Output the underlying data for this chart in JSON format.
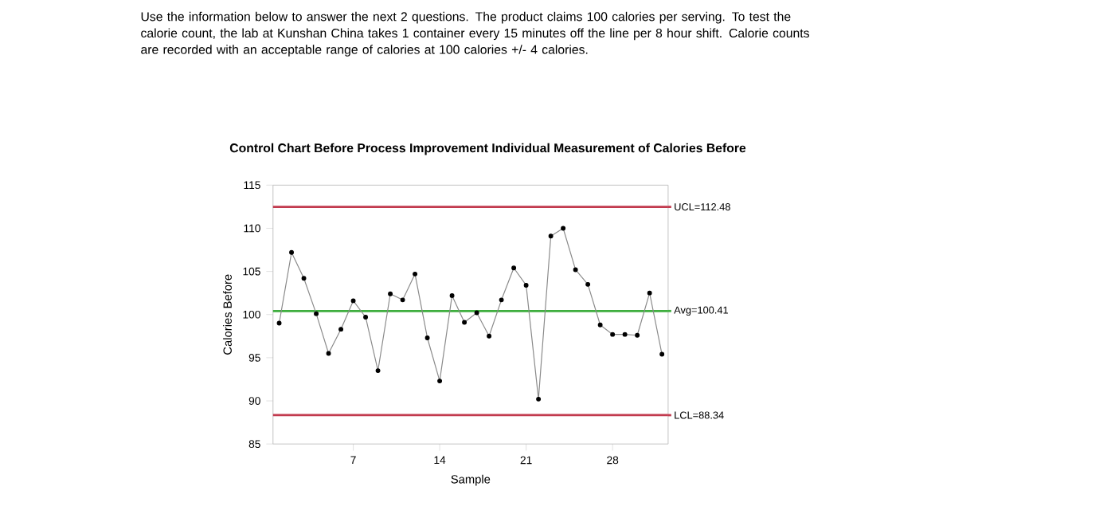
{
  "chart_data": {
    "type": "line",
    "title": "Control Chart Before Process Improvement Individual Measurement of Calories Before",
    "annotations": [
      "Use the information below to answer the next 2 questions. The product claims 100 calories per serving. To test the calorie count, the lab at Kunshan China takes 1 container every 15 minutes off the line per 8 hour shift. Calorie counts are recorded with an acceptable range of calories at 100 calories +/- 4 calories."
    ],
    "xlabel": "Sample",
    "ylabel": "Calories Before",
    "x": [
      1,
      2,
      3,
      4,
      5,
      6,
      7,
      8,
      9,
      10,
      11,
      12,
      13,
      14,
      15,
      16,
      17,
      18,
      19,
      20,
      21,
      22,
      23,
      24,
      25,
      26,
      27,
      28,
      29,
      30,
      31,
      32
    ],
    "series": [
      {
        "color": "#8a8a8a",
        "values": [
          99.0,
          107.2,
          104.2,
          100.1,
          95.5,
          98.3,
          101.6,
          99.7,
          93.5,
          102.4,
          101.7,
          104.7,
          97.3,
          92.3,
          102.2,
          99.1,
          100.2,
          97.5,
          101.7,
          105.4,
          103.4,
          90.2,
          109.1,
          110.0,
          105.2,
          103.5,
          98.8,
          97.7,
          97.7,
          97.6,
          102.5,
          95.4
        ]
      }
    ],
    "marker": "circle",
    "line_style": "solid",
    "grid": false,
    "xlim": [
      0.5,
      32.5
    ],
    "ylim": [
      85,
      115
    ],
    "xticks": [
      7,
      14,
      21,
      28
    ],
    "yticks": [
      85,
      90,
      95,
      100,
      105,
      110,
      115
    ],
    "ref_lines": [
      {
        "axis": "y",
        "value": 112.48,
        "label": "UCL=112.48",
        "color": "#c23a4e"
      },
      {
        "axis": "y",
        "value": 100.41,
        "label": "Avg=100.41",
        "color": "#3fae3f"
      },
      {
        "axis": "y",
        "value": 88.34,
        "label": "LCL=88.34",
        "color": "#c23a4e"
      }
    ]
  }
}
